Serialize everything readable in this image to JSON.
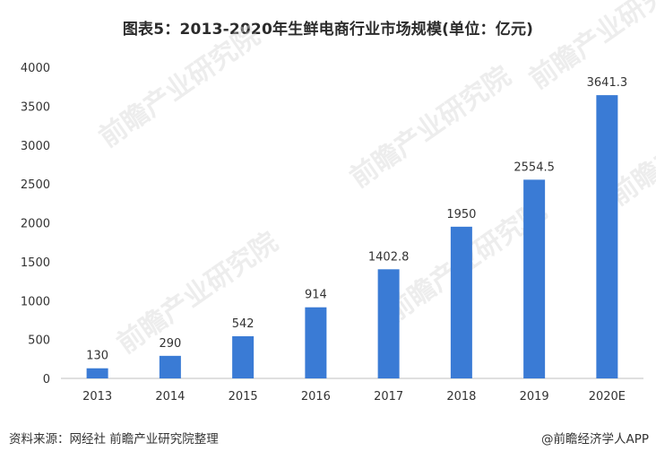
{
  "header": {
    "title": "图表5：2013-2020年生鲜电商行业市场规模(单位：亿元)"
  },
  "watermark": {
    "text": "前瞻产业研究院"
  },
  "footer": {
    "source": "资料来源：网经社 前瞻产业研究院整理",
    "credit": "@前瞻经济学人APP"
  },
  "colors": {
    "bar": "#3a7bd5",
    "axis": "#bfbfbf",
    "text": "#333333"
  },
  "chart_data": {
    "type": "bar",
    "title": "图表5：2013-2020年生鲜电商行业市场规模(单位：亿元)",
    "categories": [
      "2013",
      "2014",
      "2015",
      "2016",
      "2017",
      "2018",
      "2019",
      "2020E"
    ],
    "values": [
      130,
      290,
      542,
      914,
      1402.8,
      1950,
      2554.5,
      3641.3
    ],
    "value_labels": [
      "130",
      "290",
      "542",
      "914",
      "1402.8",
      "1950",
      "2554.5",
      "3641.3"
    ],
    "ylim": [
      0,
      4000
    ],
    "yticks": [
      0,
      500,
      1000,
      1500,
      2000,
      2500,
      3000,
      3500,
      4000
    ],
    "xlabel": "",
    "ylabel": "",
    "grid": false,
    "legend": "none"
  }
}
